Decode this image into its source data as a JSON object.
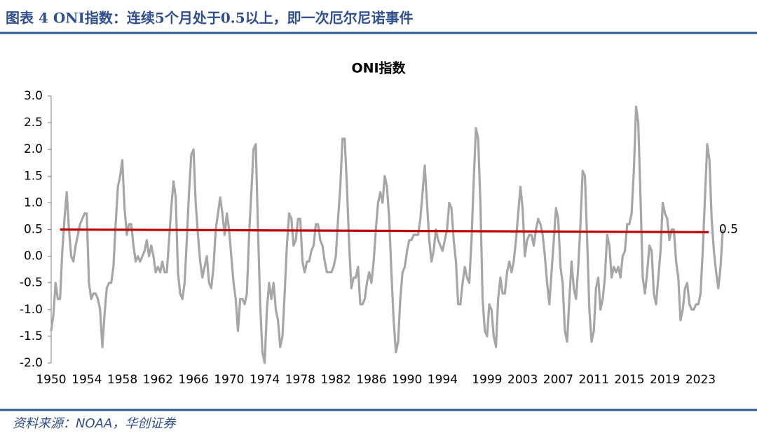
{
  "header": {
    "title": "图表 4 ONI指数：连续5个月处于0.5以上，即一次厄尔尼诺事件"
  },
  "footer": {
    "source": "资料来源：NOAA，华创证券"
  },
  "chart_data": {
    "type": "line",
    "title": "ONI指数",
    "xlim": [
      1950,
      2025.8
    ],
    "ylim": [
      -2,
      3
    ],
    "yticks": [
      {
        "value": 3,
        "label": "3.0"
      },
      2.5,
      {
        "value": 2,
        "label": "2.0"
      },
      1.5,
      {
        "value": 1,
        "label": "1.0"
      },
      0.5,
      {
        "value": 0,
        "label": "0.0"
      },
      -0.5,
      {
        "value": -1,
        "label": "-1.0"
      },
      -1.5,
      {
        "value": -2,
        "label": "-2.0"
      }
    ],
    "xticks": [
      1950,
      1954,
      1958,
      1962,
      1966,
      1970,
      1974,
      1978,
      1982,
      1986,
      1990,
      1994,
      1999,
      2003,
      2007,
      2011,
      2015,
      2019,
      2023
    ],
    "series": [
      {
        "name": "ONI指数",
        "color": "#a6a6a6",
        "x": [
          1950,
          1950.25,
          1950.5,
          1950.75,
          1951,
          1951.25,
          1951.5,
          1951.75,
          1952,
          1952.25,
          1952.5,
          1952.75,
          1953,
          1953.25,
          1953.5,
          1953.75,
          1954,
          1954.25,
          1954.5,
          1954.75,
          1955,
          1955.25,
          1955.5,
          1955.75,
          1956,
          1956.25,
          1956.5,
          1956.75,
          1957,
          1957.25,
          1957.5,
          1957.75,
          1958,
          1958.25,
          1958.5,
          1958.75,
          1959,
          1959.25,
          1959.5,
          1959.75,
          1960,
          1960.25,
          1960.5,
          1960.75,
          1961,
          1961.25,
          1961.5,
          1961.75,
          1962,
          1962.25,
          1962.5,
          1962.75,
          1963,
          1963.25,
          1963.5,
          1963.75,
          1964,
          1964.25,
          1964.5,
          1964.75,
          1965,
          1965.25,
          1965.5,
          1965.75,
          1966,
          1966.25,
          1966.5,
          1966.75,
          1967,
          1967.25,
          1967.5,
          1967.75,
          1968,
          1968.25,
          1968.5,
          1968.75,
          1969,
          1969.25,
          1969.5,
          1969.75,
          1970,
          1970.25,
          1970.5,
          1970.75,
          1971,
          1971.25,
          1971.5,
          1971.75,
          1972,
          1972.25,
          1972.5,
          1972.75,
          1973,
          1973.25,
          1973.5,
          1973.75,
          1974,
          1974.25,
          1974.5,
          1974.75,
          1975,
          1975.25,
          1975.5,
          1975.75,
          1976,
          1976.25,
          1976.5,
          1976.75,
          1977,
          1977.25,
          1977.5,
          1977.75,
          1978,
          1978.25,
          1978.5,
          1978.75,
          1979,
          1979.25,
          1979.5,
          1979.75,
          1980,
          1980.25,
          1980.5,
          1980.75,
          1981,
          1981.25,
          1981.5,
          1981.75,
          1982,
          1982.25,
          1982.5,
          1982.75,
          1983,
          1983.25,
          1983.5,
          1983.75,
          1984,
          1984.25,
          1984.5,
          1984.75,
          1985,
          1985.25,
          1985.5,
          1985.75,
          1986,
          1986.25,
          1986.5,
          1986.75,
          1987,
          1987.25,
          1987.5,
          1987.75,
          1988,
          1988.25,
          1988.5,
          1988.75,
          1989,
          1989.25,
          1989.5,
          1989.75,
          1990,
          1990.25,
          1990.5,
          1990.75,
          1991,
          1991.25,
          1991.5,
          1991.75,
          1992,
          1992.25,
          1992.5,
          1992.75,
          1993,
          1993.25,
          1993.5,
          1993.75,
          1994,
          1994.25,
          1994.5,
          1994.75,
          1995,
          1995.25,
          1995.5,
          1995.75,
          1996,
          1996.25,
          1996.5,
          1996.75,
          1997,
          1997.25,
          1997.5,
          1997.75,
          1998,
          1998.25,
          1998.5,
          1998.75,
          1999,
          1999.25,
          1999.5,
          1999.75,
          2000,
          2000.25,
          2000.5,
          2000.75,
          2001,
          2001.25,
          2001.5,
          2001.75,
          2002,
          2002.25,
          2002.5,
          2002.75,
          2003,
          2003.25,
          2003.5,
          2003.75,
          2004,
          2004.25,
          2004.5,
          2004.75,
          2005,
          2005.25,
          2005.5,
          2005.75,
          2006,
          2006.25,
          2006.5,
          2006.75,
          2007,
          2007.25,
          2007.5,
          2007.75,
          2008,
          2008.25,
          2008.5,
          2008.75,
          2009,
          2009.25,
          2009.5,
          2009.75,
          2010,
          2010.25,
          2010.5,
          2010.75,
          2011,
          2011.25,
          2011.5,
          2011.75,
          2012,
          2012.25,
          2012.5,
          2012.75,
          2013,
          2013.25,
          2013.5,
          2013.75,
          2014,
          2014.25,
          2014.5,
          2014.75,
          2015,
          2015.25,
          2015.5,
          2015.75,
          2016,
          2016.25,
          2016.5,
          2016.75,
          2017,
          2017.25,
          2017.5,
          2017.75,
          2018,
          2018.25,
          2018.5,
          2018.75,
          2019,
          2019.25,
          2019.5,
          2019.75,
          2020,
          2020.25,
          2020.5,
          2020.75,
          2021,
          2021.25,
          2021.5,
          2021.75,
          2022,
          2022.25,
          2022.5,
          2022.75,
          2023,
          2023.25,
          2023.5,
          2023.75,
          2024,
          2024.25,
          2024.5,
          2024.75,
          2025,
          2025.25,
          2025.5
        ],
        "values": [
          -1.4,
          -1.1,
          -0.5,
          -0.8,
          -0.8,
          0.1,
          0.7,
          1.2,
          0.5,
          0.0,
          -0.1,
          0.2,
          0.4,
          0.6,
          0.7,
          0.8,
          0.8,
          -0.5,
          -0.8,
          -0.7,
          -0.7,
          -0.8,
          -1.0,
          -1.7,
          -1.1,
          -0.6,
          -0.5,
          -0.5,
          -0.2,
          0.6,
          1.3,
          1.5,
          1.8,
          0.9,
          0.4,
          0.6,
          0.6,
          0.2,
          -0.1,
          0.0,
          -0.1,
          0.0,
          0.1,
          0.3,
          0.0,
          0.2,
          0.0,
          -0.3,
          -0.2,
          -0.3,
          -0.1,
          -0.3,
          -0.3,
          0.3,
          0.9,
          1.4,
          1.1,
          -0.3,
          -0.7,
          -0.8,
          -0.5,
          0.3,
          1.2,
          1.9,
          2.0,
          1.0,
          0.4,
          -0.1,
          -0.4,
          -0.2,
          0.0,
          -0.5,
          -0.6,
          -0.2,
          0.5,
          0.8,
          1.1,
          0.8,
          0.4,
          0.8,
          0.5,
          0.0,
          -0.5,
          -0.8,
          -1.4,
          -0.8,
          -0.8,
          -0.9,
          -0.7,
          0.4,
          1.2,
          2.0,
          2.1,
          0.5,
          -0.9,
          -1.8,
          -2.0,
          -1.0,
          -0.5,
          -0.8,
          -0.5,
          -1.0,
          -1.2,
          -1.7,
          -1.5,
          -0.7,
          0.2,
          0.8,
          0.7,
          0.2,
          0.3,
          0.7,
          0.7,
          -0.1,
          -0.3,
          -0.1,
          -0.1,
          0.1,
          0.2,
          0.6,
          0.6,
          0.3,
          0.2,
          -0.1,
          -0.3,
          -0.3,
          -0.3,
          -0.2,
          0.0,
          0.7,
          1.3,
          2.2,
          2.2,
          1.3,
          0.2,
          -0.6,
          -0.4,
          -0.4,
          -0.2,
          -0.9,
          -0.9,
          -0.8,
          -0.5,
          -0.3,
          -0.5,
          -0.1,
          0.5,
          1.0,
          1.2,
          1.0,
          1.5,
          1.3,
          0.7,
          -0.3,
          -1.2,
          -1.8,
          -1.6,
          -0.8,
          -0.3,
          -0.2,
          0.1,
          0.3,
          0.3,
          0.4,
          0.4,
          0.4,
          0.7,
          1.2,
          1.7,
          1.0,
          0.3,
          -0.1,
          0.1,
          0.5,
          0.3,
          0.2,
          0.1,
          0.3,
          0.5,
          1.0,
          0.9,
          0.3,
          -0.1,
          -0.9,
          -0.9,
          -0.5,
          -0.2,
          -0.4,
          -0.5,
          0.3,
          1.4,
          2.4,
          2.2,
          1.0,
          -0.8,
          -1.4,
          -1.5,
          -0.9,
          -1.0,
          -1.5,
          -1.7,
          -0.8,
          -0.4,
          -0.7,
          -0.7,
          -0.3,
          -0.1,
          -0.3,
          -0.1,
          0.3,
          0.8,
          1.3,
          0.9,
          0.0,
          0.3,
          0.4,
          0.4,
          0.2,
          0.5,
          0.7,
          0.6,
          0.4,
          0.0,
          -0.5,
          -0.9,
          -0.3,
          0.3,
          0.9,
          0.7,
          -0.2,
          -0.5,
          -1.4,
          -1.6,
          -0.8,
          -0.1,
          -0.6,
          -0.8,
          -0.2,
          0.6,
          1.6,
          1.5,
          0.3,
          -1.0,
          -1.6,
          -1.4,
          -0.6,
          -0.4,
          -1.0,
          -0.8,
          -0.4,
          0.4,
          0.2,
          -0.4,
          -0.2,
          -0.3,
          -0.2,
          -0.4,
          0.0,
          0.1,
          0.6,
          0.6,
          0.8,
          1.6,
          2.8,
          2.5,
          1.1,
          -0.4,
          -0.7,
          -0.3,
          0.2,
          0.1,
          -0.7,
          -0.9,
          -0.4,
          0.1,
          1.0,
          0.8,
          0.7,
          0.3,
          0.5,
          0.5,
          -0.1,
          -0.4,
          -1.2,
          -1.0,
          -0.6,
          -0.5,
          -0.9,
          -1.0,
          -1.0,
          -0.9,
          -0.9,
          -0.7,
          0.1,
          1.1,
          2.1,
          1.8,
          0.7,
          0.1,
          -0.3,
          -0.6,
          -0.2,
          0.5
        ]
      },
      {
        "name": "0.5",
        "color": "#c00000",
        "x": [
          1951,
          2023.9
        ],
        "values": [
          0.5,
          0.45
        ]
      }
    ]
  }
}
